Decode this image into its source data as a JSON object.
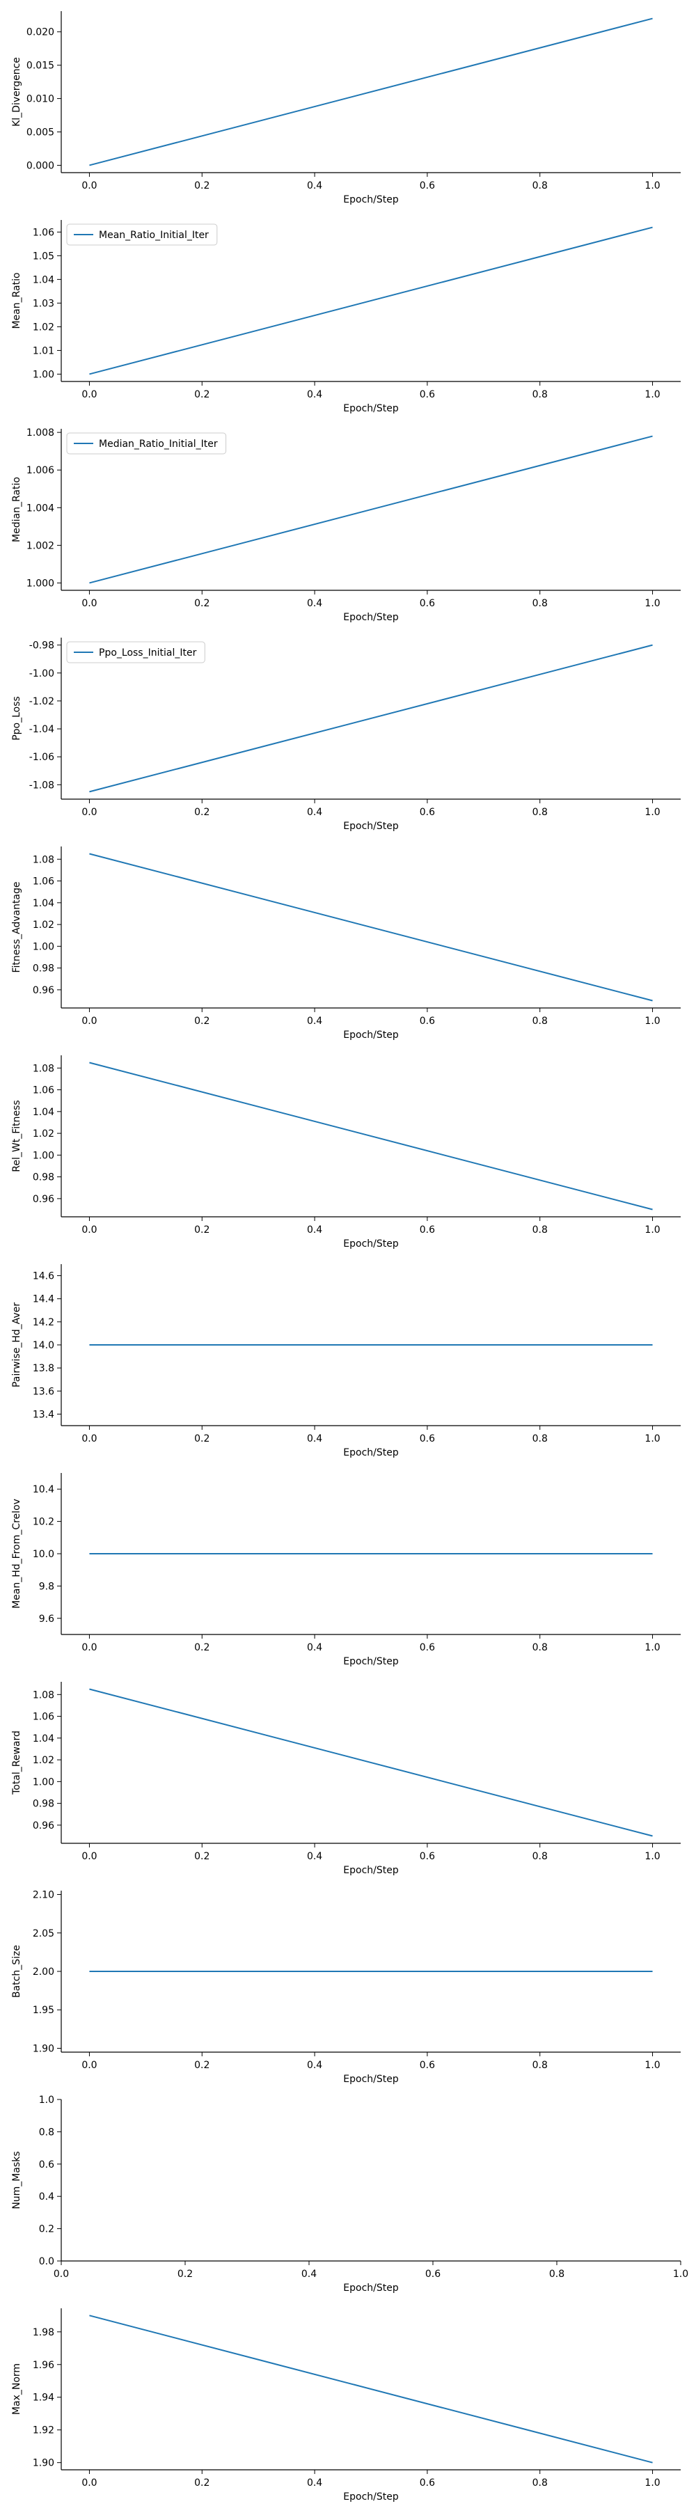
{
  "chart_data": [
    {
      "type": "line",
      "xlabel": "Epoch/Step",
      "ylabel": "Kl_Divergence",
      "xlim": [
        -0.05,
        1.05
      ],
      "ylim": [
        -0.0011,
        0.0231
      ],
      "xticks": [
        "0.0",
        "0.2",
        "0.4",
        "0.6",
        "0.8",
        "1.0"
      ],
      "yticks": [
        "0.000",
        "0.005",
        "0.010",
        "0.015",
        "0.020"
      ],
      "series": [
        {
          "x": [
            0,
            1
          ],
          "y": [
            0.0,
            0.022
          ]
        }
      ],
      "grid": false,
      "legend": ""
    },
    {
      "type": "line",
      "xlabel": "Epoch/Step",
      "ylabel": "Mean_Ratio",
      "xlim": [
        -0.05,
        1.05
      ],
      "ylim": [
        0.9969,
        1.0651
      ],
      "xticks": [
        "0.0",
        "0.2",
        "0.4",
        "0.6",
        "0.8",
        "1.0"
      ],
      "yticks": [
        "1.00",
        "1.01",
        "1.02",
        "1.03",
        "1.04",
        "1.05",
        "1.06"
      ],
      "series": [
        {
          "name": "Mean_Ratio_Initial_Iter",
          "x": [
            0,
            1
          ],
          "y": [
            1.0,
            1.062
          ]
        }
      ],
      "grid": false,
      "legend": "top-left"
    },
    {
      "type": "line",
      "xlabel": "Epoch/Step",
      "ylabel": "Median_Ratio",
      "xlim": [
        -0.05,
        1.05
      ],
      "ylim": [
        0.99961,
        1.00819
      ],
      "xticks": [
        "0.0",
        "0.2",
        "0.4",
        "0.6",
        "0.8",
        "1.0"
      ],
      "yticks": [
        "1.000",
        "1.002",
        "1.004",
        "1.006",
        "1.008"
      ],
      "series": [
        {
          "name": "Median_Ratio_Initial_Iter",
          "x": [
            0,
            1
          ],
          "y": [
            1.0,
            1.0078
          ]
        }
      ],
      "grid": false,
      "legend": "top-left"
    },
    {
      "type": "line",
      "xlabel": "Epoch/Step",
      "ylabel": "Ppo_Loss",
      "xlim": [
        -0.05,
        1.05
      ],
      "ylim": [
        -1.0903,
        -0.9747
      ],
      "xticks": [
        "0.0",
        "0.2",
        "0.4",
        "0.6",
        "0.8",
        "1.0"
      ],
      "yticks": [
        "-1.08",
        "-1.06",
        "-1.04",
        "-1.02",
        "-1.00",
        "-0.98"
      ],
      "series": [
        {
          "name": "Ppo_Loss_Initial_Iter",
          "x": [
            0,
            1
          ],
          "y": [
            -1.085,
            -0.98
          ]
        }
      ],
      "grid": false,
      "legend": "top-left"
    },
    {
      "type": "line",
      "xlabel": "Epoch/Step",
      "ylabel": "Fitness_Advantage",
      "xlim": [
        -0.05,
        1.05
      ],
      "ylim": [
        0.9433,
        1.0917
      ],
      "xticks": [
        "0.0",
        "0.2",
        "0.4",
        "0.6",
        "0.8",
        "1.0"
      ],
      "yticks": [
        "0.96",
        "0.98",
        "1.00",
        "1.02",
        "1.04",
        "1.06",
        "1.08"
      ],
      "series": [
        {
          "x": [
            0,
            1
          ],
          "y": [
            1.085,
            0.95
          ]
        }
      ],
      "grid": false,
      "legend": ""
    },
    {
      "type": "line",
      "xlabel": "Epoch/Step",
      "ylabel": "Rel_Wt_Fitness",
      "xlim": [
        -0.05,
        1.05
      ],
      "ylim": [
        0.9433,
        1.0917
      ],
      "xticks": [
        "0.0",
        "0.2",
        "0.4",
        "0.6",
        "0.8",
        "1.0"
      ],
      "yticks": [
        "0.96",
        "0.98",
        "1.00",
        "1.02",
        "1.04",
        "1.06",
        "1.08"
      ],
      "series": [
        {
          "x": [
            0,
            1
          ],
          "y": [
            1.085,
            0.95
          ]
        }
      ],
      "grid": false,
      "legend": ""
    },
    {
      "type": "line",
      "xlabel": "Epoch/Step",
      "ylabel": "Pairwise_Hd_Aver",
      "xlim": [
        -0.05,
        1.05
      ],
      "ylim": [
        13.3,
        14.7
      ],
      "xticks": [
        "0.0",
        "0.2",
        "0.4",
        "0.6",
        "0.8",
        "1.0"
      ],
      "yticks": [
        "13.4",
        "13.6",
        "13.8",
        "14.0",
        "14.2",
        "14.4",
        "14.6"
      ],
      "series": [
        {
          "x": [
            0,
            1
          ],
          "y": [
            14.0,
            14.0
          ]
        }
      ],
      "grid": false,
      "legend": ""
    },
    {
      "type": "line",
      "xlabel": "Epoch/Step",
      "ylabel": "Mean_Hd_From_Crelov",
      "xlim": [
        -0.05,
        1.05
      ],
      "ylim": [
        9.5,
        10.5
      ],
      "xticks": [
        "0.0",
        "0.2",
        "0.4",
        "0.6",
        "0.8",
        "1.0"
      ],
      "yticks": [
        "9.6",
        "9.8",
        "10.0",
        "10.2",
        "10.4"
      ],
      "series": [
        {
          "x": [
            0,
            1
          ],
          "y": [
            10.0,
            10.0
          ]
        }
      ],
      "grid": false,
      "legend": ""
    },
    {
      "type": "line",
      "xlabel": "Epoch/Step",
      "ylabel": "Total_Reward",
      "xlim": [
        -0.05,
        1.05
      ],
      "ylim": [
        0.9433,
        1.0917
      ],
      "xticks": [
        "0.0",
        "0.2",
        "0.4",
        "0.6",
        "0.8",
        "1.0"
      ],
      "yticks": [
        "0.96",
        "0.98",
        "1.00",
        "1.02",
        "1.04",
        "1.06",
        "1.08"
      ],
      "series": [
        {
          "x": [
            0,
            1
          ],
          "y": [
            1.085,
            0.95
          ]
        }
      ],
      "grid": false,
      "legend": ""
    },
    {
      "type": "line",
      "xlabel": "Epoch/Step",
      "ylabel": "Batch_Size",
      "xlim": [
        -0.05,
        1.05
      ],
      "ylim": [
        1.895,
        2.105
      ],
      "xticks": [
        "0.0",
        "0.2",
        "0.4",
        "0.6",
        "0.8",
        "1.0"
      ],
      "yticks": [
        "1.90",
        "1.95",
        "2.00",
        "2.05",
        "2.10"
      ],
      "series": [
        {
          "x": [
            0,
            1
          ],
          "y": [
            2.0,
            2.0
          ]
        }
      ],
      "grid": false,
      "legend": ""
    },
    {
      "type": "line",
      "xlabel": "Epoch/Step",
      "ylabel": "Num_Masks",
      "xlim": [
        0,
        1
      ],
      "ylim": [
        0,
        1
      ],
      "xticks": [
        "0.0",
        "0.2",
        "0.4",
        "0.6",
        "0.8",
        "1.0"
      ],
      "yticks": [
        "0.0",
        "0.2",
        "0.4",
        "0.6",
        "0.8",
        "1.0"
      ],
      "series": [],
      "grid": false,
      "legend": ""
    },
    {
      "type": "line",
      "xlabel": "Epoch/Step",
      "ylabel": "Max_Norm",
      "xlim": [
        -0.05,
        1.05
      ],
      "ylim": [
        1.8956,
        1.9944
      ],
      "xticks": [
        "0.0",
        "0.2",
        "0.4",
        "0.6",
        "0.8",
        "1.0"
      ],
      "yticks": [
        "1.90",
        "1.92",
        "1.94",
        "1.96",
        "1.98"
      ],
      "series": [
        {
          "x": [
            0,
            1
          ],
          "y": [
            1.99,
            1.9
          ]
        }
      ],
      "grid": false,
      "legend": ""
    }
  ]
}
